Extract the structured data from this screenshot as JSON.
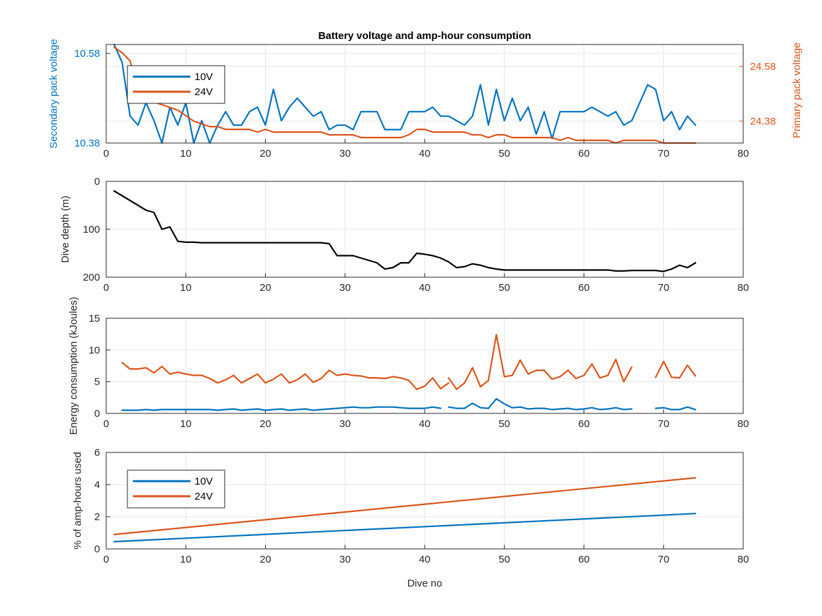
{
  "figure": {
    "background": "#ffffff",
    "axis_color": "#262626",
    "grid_color": "#e6e6e6"
  },
  "chart_data": [
    {
      "type": "line",
      "title": "Battery voltage and amp-hour consumption",
      "xlabel": "",
      "ylabel": "Secondary pack voltage",
      "ylabel_right": "Primary pack voltage",
      "xlim": [
        0,
        80
      ],
      "ylim": [
        10.38,
        10.6
      ],
      "ylim_right": [
        24.3,
        24.66
      ],
      "xticks": [
        "0",
        "10",
        "20",
        "30",
        "40",
        "50",
        "60",
        "70",
        "80"
      ],
      "yticks": [
        "10.38",
        "10.58"
      ],
      "yticks_right": [
        "24.38",
        "24.58"
      ],
      "grid": true,
      "legend": {
        "position": "top-left",
        "entries": [
          "10V",
          "24V"
        ]
      },
      "series": [
        {
          "name": "10V",
          "axis": "left",
          "color": "#0072BD",
          "x": [
            1,
            2,
            3,
            4,
            5,
            6,
            7,
            8,
            9,
            10,
            11,
            12,
            13,
            14,
            15,
            16,
            17,
            18,
            19,
            20,
            21,
            22,
            23,
            24,
            25,
            26,
            27,
            28,
            29,
            30,
            31,
            32,
            33,
            34,
            35,
            36,
            37,
            38,
            39,
            40,
            41,
            42,
            43,
            44,
            45,
            46,
            47,
            48,
            49,
            50,
            51,
            52,
            53,
            54,
            55,
            56,
            57,
            58,
            59,
            60,
            61,
            62,
            63,
            64,
            65,
            66,
            67,
            68,
            69,
            70,
            71,
            72,
            73,
            74
          ],
          "y": [
            10.6,
            10.56,
            10.44,
            10.42,
            10.47,
            10.43,
            10.38,
            10.46,
            10.42,
            10.47,
            10.38,
            10.43,
            10.38,
            10.42,
            10.45,
            10.42,
            10.42,
            10.45,
            10.46,
            10.42,
            10.5,
            10.43,
            10.46,
            10.48,
            10.46,
            10.44,
            10.45,
            10.41,
            10.42,
            10.42,
            10.41,
            10.45,
            10.45,
            10.45,
            10.41,
            10.41,
            10.41,
            10.45,
            10.45,
            10.45,
            10.46,
            10.44,
            10.44,
            10.43,
            10.42,
            10.44,
            10.51,
            10.42,
            10.5,
            10.43,
            10.48,
            10.43,
            10.46,
            10.4,
            10.45,
            10.39,
            10.45,
            10.45,
            10.45,
            10.45,
            10.46,
            10.45,
            10.44,
            10.45,
            10.42,
            10.43,
            10.47,
            10.51,
            10.5,
            10.43,
            10.45,
            10.41,
            10.44,
            10.42
          ]
        },
        {
          "name": "24V",
          "axis": "right",
          "color": "#D95319",
          "x": [
            1,
            2,
            3,
            4,
            5,
            6,
            7,
            8,
            9,
            10,
            11,
            12,
            13,
            14,
            15,
            16,
            17,
            18,
            19,
            20,
            21,
            22,
            23,
            24,
            25,
            26,
            27,
            28,
            29,
            30,
            31,
            32,
            33,
            34,
            35,
            36,
            37,
            38,
            39,
            40,
            41,
            42,
            43,
            44,
            45,
            46,
            47,
            48,
            49,
            50,
            51,
            52,
            53,
            54,
            55,
            56,
            57,
            58,
            59,
            60,
            61,
            62,
            63,
            64,
            65,
            66,
            67,
            68,
            69,
            70,
            71,
            72,
            73,
            74
          ],
          "y": [
            24.65,
            24.63,
            24.6,
            24.5,
            24.47,
            24.45,
            24.44,
            24.43,
            24.42,
            24.4,
            24.38,
            24.37,
            24.36,
            24.36,
            24.35,
            24.35,
            24.35,
            24.35,
            24.34,
            24.35,
            24.34,
            24.34,
            24.34,
            24.34,
            24.34,
            24.34,
            24.34,
            24.33,
            24.33,
            24.33,
            24.33,
            24.32,
            24.32,
            24.32,
            24.32,
            24.32,
            24.32,
            24.33,
            24.35,
            24.35,
            24.34,
            24.34,
            24.34,
            24.34,
            24.34,
            24.33,
            24.33,
            24.32,
            24.33,
            24.33,
            24.32,
            24.32,
            24.32,
            24.32,
            24.32,
            24.32,
            24.31,
            24.32,
            24.31,
            24.31,
            24.31,
            24.31,
            24.31,
            24.3,
            24.31,
            24.31,
            24.31,
            24.31,
            24.31,
            24.3,
            24.3,
            24.3,
            24.3,
            24.3
          ]
        }
      ]
    },
    {
      "type": "line",
      "xlabel": "",
      "ylabel": "Dive depth (m)",
      "xlim": [
        0,
        80
      ],
      "ylim": [
        0,
        200
      ],
      "y_reversed": true,
      "xticks": [
        "0",
        "10",
        "20",
        "30",
        "40",
        "50",
        "60",
        "70",
        "80"
      ],
      "yticks": [
        "0",
        "100",
        "200"
      ],
      "grid": true,
      "series": [
        {
          "color": "#000000",
          "x": [
            1,
            2,
            3,
            4,
            5,
            6,
            7,
            8,
            9,
            10,
            11,
            12,
            13,
            14,
            15,
            16,
            17,
            18,
            19,
            20,
            21,
            22,
            23,
            24,
            25,
            26,
            27,
            28,
            29,
            30,
            31,
            32,
            33,
            34,
            35,
            36,
            37,
            38,
            39,
            40,
            41,
            42,
            43,
            44,
            45,
            46,
            47,
            48,
            49,
            50,
            51,
            52,
            53,
            54,
            55,
            56,
            57,
            58,
            59,
            60,
            61,
            62,
            63,
            64,
            65,
            66,
            67,
            68,
            69,
            70,
            71,
            72,
            73,
            74
          ],
          "y": [
            20,
            30,
            40,
            50,
            60,
            65,
            100,
            95,
            125,
            127,
            127,
            128,
            128,
            128,
            128,
            128,
            128,
            128,
            128,
            128,
            128,
            128,
            128,
            128,
            128,
            128,
            128,
            130,
            155,
            155,
            155,
            160,
            165,
            170,
            183,
            180,
            170,
            170,
            150,
            152,
            155,
            160,
            168,
            180,
            178,
            172,
            175,
            180,
            183,
            185,
            185,
            185,
            185,
            185,
            185,
            185,
            185,
            185,
            185,
            185,
            185,
            185,
            185,
            187,
            187,
            186,
            186,
            186,
            186,
            188,
            183,
            175,
            180,
            170
          ]
        }
      ]
    },
    {
      "type": "line",
      "xlabel": "",
      "ylabel": "Energy consumption (kJoules)",
      "xlim": [
        0,
        80
      ],
      "ylim": [
        0,
        15
      ],
      "xticks": [
        "0",
        "10",
        "20",
        "30",
        "40",
        "50",
        "60",
        "70",
        "80"
      ],
      "yticks": [
        "0",
        "5",
        "10",
        "15"
      ],
      "grid": true,
      "series": [
        {
          "color": "#D95319",
          "segments": [
            {
              "x": [
                2,
                3,
                4,
                5,
                6,
                7,
                8,
                9,
                10,
                11,
                12,
                13,
                14,
                15,
                16,
                17,
                18,
                19,
                20,
                21,
                22,
                23,
                24,
                25,
                26,
                27,
                28,
                29,
                30,
                31,
                32,
                33,
                34,
                35,
                36,
                37,
                38,
                39,
                40,
                41,
                42
              ],
              "y": [
                8.0,
                7.0,
                7.0,
                7.2,
                6.4,
                7.4,
                6.2,
                6.5,
                6.2,
                6.0,
                6.0,
                5.5,
                4.8,
                5.3,
                6.0,
                4.8,
                5.5,
                6.2,
                4.8,
                5.4,
                6.2,
                4.8,
                5.3,
                6.2,
                4.9,
                5.5,
                6.8,
                6.0,
                6.2,
                6.0,
                5.9,
                5.6,
                5.6,
                5.5,
                5.8,
                5.6,
                5.2,
                3.8,
                4.3,
                5.6,
                3.9
              ]
            },
            {
              "x": [
                42,
                43
              ],
              "y": [
                3.9,
                4.8
              ]
            },
            {
              "x": [
                43,
                44,
                45,
                46,
                47,
                48,
                49,
                50,
                51,
                52,
                53,
                54,
                55,
                56,
                57,
                58,
                59,
                60,
                61,
                62,
                63,
                64,
                65,
                66
              ],
              "y": [
                5.6,
                3.8,
                4.8,
                7.2,
                4.2,
                5.2,
                12.4,
                5.8,
                6.0,
                8.4,
                6.2,
                6.8,
                6.8,
                5.4,
                5.8,
                6.8,
                5.5,
                6.0,
                7.8,
                5.6,
                6.0,
                8.5,
                5.0,
                7.3
              ]
            },
            {
              "x": [
                69,
                70,
                71,
                72,
                73,
                74
              ],
              "y": [
                5.7,
                8.2,
                5.7,
                5.6,
                7.6,
                5.9
              ]
            }
          ]
        },
        {
          "color": "#0072BD",
          "segments": [
            {
              "x": [
                2,
                3,
                4,
                5,
                6,
                7,
                8,
                9,
                10,
                11,
                12,
                13,
                14,
                15,
                16,
                17,
                18,
                19,
                20,
                21,
                22,
                23,
                24,
                25,
                26,
                27,
                28,
                29,
                30,
                31,
                32,
                33,
                34,
                35,
                36,
                37,
                38,
                39,
                40,
                41,
                42
              ],
              "y": [
                0.5,
                0.5,
                0.5,
                0.6,
                0.5,
                0.6,
                0.6,
                0.6,
                0.6,
                0.6,
                0.6,
                0.6,
                0.5,
                0.6,
                0.7,
                0.5,
                0.6,
                0.7,
                0.5,
                0.6,
                0.7,
                0.5,
                0.6,
                0.7,
                0.5,
                0.6,
                0.7,
                0.8,
                0.9,
                1.0,
                0.9,
                0.9,
                1.0,
                1.0,
                1.0,
                0.9,
                0.8,
                0.8,
                0.8,
                1.0,
                0.8
              ]
            },
            {
              "x": [
                43,
                44,
                45,
                46,
                47,
                48,
                49,
                50,
                51,
                52,
                53,
                54,
                55,
                56,
                57,
                58,
                59,
                60,
                61,
                62,
                63,
                64,
                65,
                66
              ],
              "y": [
                1.0,
                0.8,
                0.8,
                1.6,
                0.9,
                0.8,
                2.3,
                1.5,
                0.9,
                1.0,
                0.7,
                0.8,
                0.8,
                0.6,
                0.7,
                0.8,
                0.6,
                0.7,
                0.9,
                0.6,
                0.7,
                0.9,
                0.6,
                0.7
              ]
            },
            {
              "x": [
                69,
                70,
                71,
                72,
                73,
                74
              ],
              "y": [
                0.8,
                0.9,
                0.6,
                0.6,
                1.0,
                0.6
              ]
            }
          ]
        }
      ]
    },
    {
      "type": "line",
      "xlabel": "Dive no",
      "ylabel": "% of amp-hours used",
      "xlim": [
        0,
        80
      ],
      "ylim": [
        0,
        6
      ],
      "xticks": [
        "0",
        "10",
        "20",
        "30",
        "40",
        "50",
        "60",
        "70",
        "80"
      ],
      "yticks": [
        "0",
        "2",
        "4",
        "6"
      ],
      "grid": true,
      "legend": {
        "position": "top-left",
        "entries": [
          "10V",
          "24V"
        ]
      },
      "series": [
        {
          "name": "10V",
          "color": "#0072BD",
          "x": [
            1,
            74
          ],
          "y": [
            0.45,
            2.2
          ]
        },
        {
          "name": "24V",
          "color": "#D95319",
          "x": [
            1,
            74
          ],
          "y": [
            0.9,
            4.42
          ]
        }
      ]
    }
  ]
}
